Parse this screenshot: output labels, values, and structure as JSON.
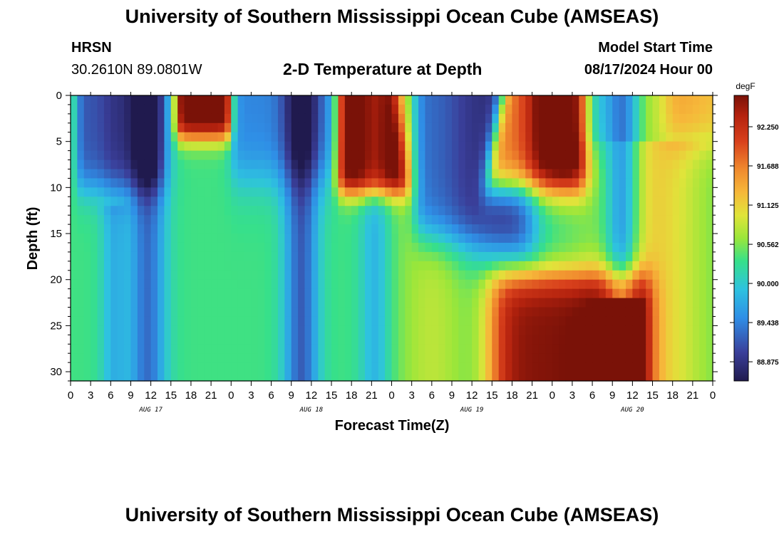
{
  "page": {
    "title": "University of Southern Mississippi Ocean Cube (AMSEAS)",
    "footer_title": "University of Southern Mississippi Ocean Cube (AMSEAS)",
    "station": "HRSN",
    "coords": "30.2610N  89.0801W",
    "subtitle": "2-D Temperature at Depth",
    "start_label": "Model Start Time",
    "start_value": "08/17/2024 Hour 00"
  },
  "chart_data": {
    "type": "heatmap",
    "title": "2-D Temperature at Depth",
    "xlabel": "Forecast Time(Z)",
    "ylabel": "Depth (ft)",
    "x_tick_labels": [
      "0",
      "3",
      "6",
      "9",
      "12",
      "15",
      "18",
      "21",
      "0",
      "3",
      "6",
      "9",
      "12",
      "15",
      "18",
      "21",
      "0",
      "3",
      "6",
      "9",
      "12",
      "15",
      "18",
      "21",
      "0",
      "3",
      "6",
      "9",
      "12",
      "15",
      "18",
      "21",
      "0"
    ],
    "x_range_hours": [
      0,
      96
    ],
    "date_labels": [
      {
        "label": "AUG 17",
        "hour": 12
      },
      {
        "label": "AUG 18",
        "hour": 36
      },
      {
        "label": "AUG 19",
        "hour": 60
      },
      {
        "label": "AUG 20",
        "hour": 84
      }
    ],
    "y_tick_labels": [
      "0",
      "5",
      "10",
      "15",
      "20",
      "25",
      "30"
    ],
    "y_range_ft": [
      0,
      31
    ],
    "colorbar": {
      "unit": "degF",
      "min": 88.6,
      "max": 92.7,
      "tick_labels": [
        "92.250",
        "91.688",
        "91.125",
        "90.562",
        "90.000",
        "89.438",
        "88.875"
      ],
      "tick_values": [
        92.25,
        91.688,
        91.125,
        90.562,
        90.0,
        89.438,
        88.875
      ]
    },
    "field_description": "Warm red surface pulses near hours 17-23, 40-46, 65-72; cold deep-blue upper layers alternate; warm red deep layer (20-31 ft) from hour 64 to 86; cool blue column near hour 11 and 34 through full depth."
  }
}
